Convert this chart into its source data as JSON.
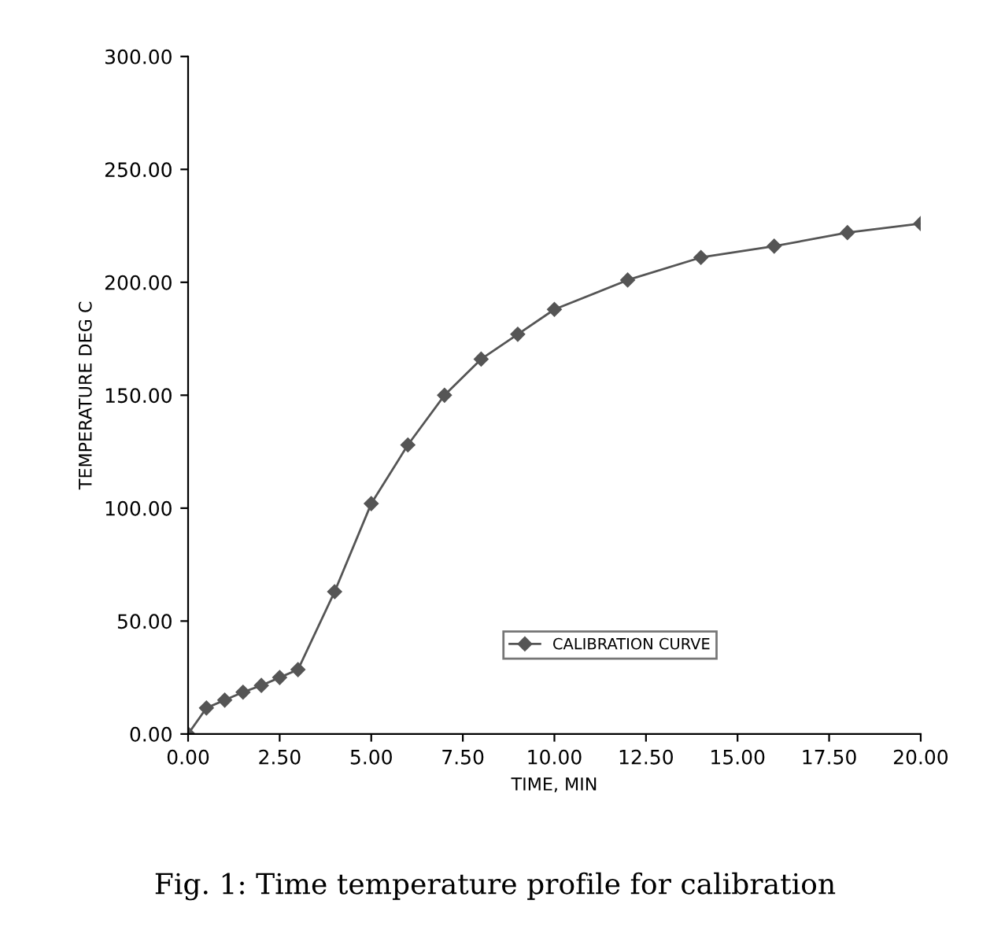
{
  "chart_data": {
    "type": "line",
    "xlabel": "TIME, MIN",
    "ylabel": "TEMPERATURE DEG C",
    "annotations": [
      "Fig. 1: Time temperature profile for calibration"
    ],
    "x": [
      0,
      0.5,
      1,
      1.5,
      2,
      2.5,
      3,
      4,
      5,
      6,
      7,
      8,
      9,
      10,
      12,
      14,
      16,
      18,
      20
    ],
    "series": [
      {
        "name": "CALIBRATION CURVE",
        "color": "#555555",
        "values": [
          0,
          11.5,
          15,
          18.5,
          21.5,
          25,
          28.5,
          63,
          102,
          128,
          150,
          166,
          177,
          188,
          201,
          211,
          216,
          222,
          226
        ]
      }
    ],
    "xlim": [
      0,
      20
    ],
    "xticks": [
      {
        "value": 0,
        "label": "0.00"
      },
      {
        "value": 2.5,
        "label": "2.50"
      },
      {
        "value": 5,
        "label": "5.00"
      },
      {
        "value": 7.5,
        "label": "7.50"
      },
      {
        "value": 10,
        "label": "10.00"
      },
      {
        "value": 12.5,
        "label": "12.50"
      },
      {
        "value": 15,
        "label": "15.00"
      },
      {
        "value": 17.5,
        "label": "17.50"
      },
      {
        "value": 20,
        "label": "20.00"
      }
    ],
    "ylim": [
      0,
      300
    ],
    "yticks": [
      {
        "value": 0,
        "label": "0.00"
      },
      {
        "value": 50,
        "label": "50.00"
      },
      {
        "value": 100,
        "label": "100.00"
      },
      {
        "value": 150,
        "label": "150.00"
      },
      {
        "value": 200,
        "label": "200.00"
      },
      {
        "value": 250,
        "label": "250.00"
      },
      {
        "value": 300,
        "label": "300.00"
      }
    ],
    "marker": "diamond",
    "line_style": "solid",
    "legend": "bottom right",
    "grid": false
  }
}
